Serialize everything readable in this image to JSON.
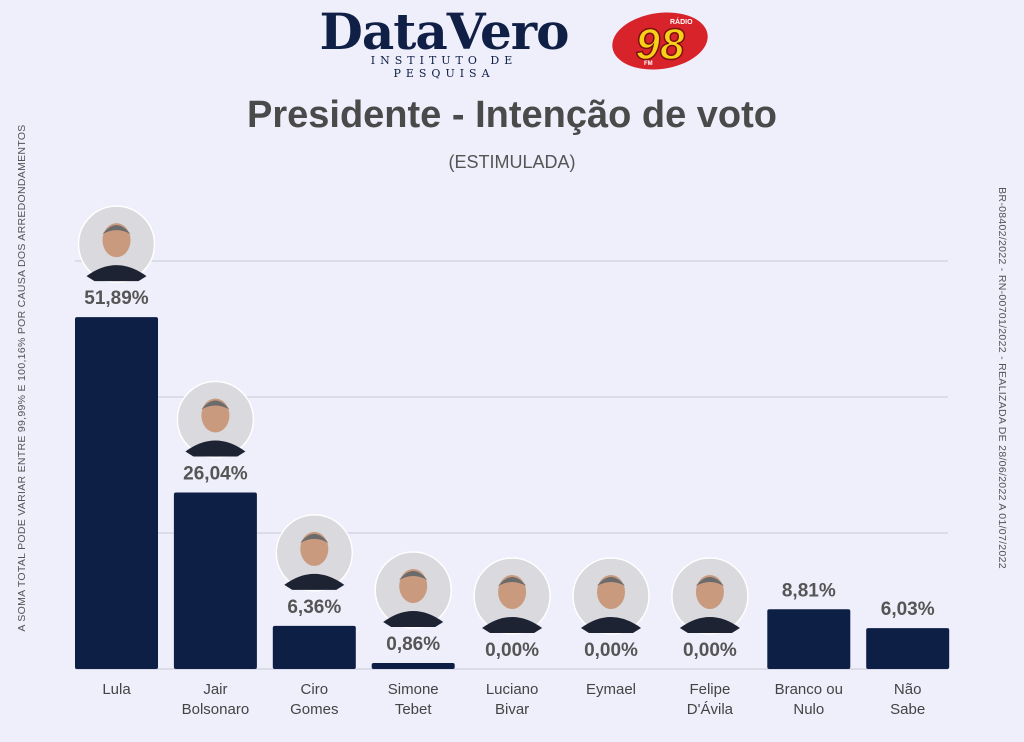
{
  "header": {
    "brand_name": "DataVero",
    "brand_tagline": "INSTITUTO DE PESQUISA",
    "radio_top": "RÁDIO",
    "radio_number": "98",
    "radio_bottom": "FM"
  },
  "side_notes": {
    "left": "A SOMA TOTAL PODE VARIAR ENTRE 99,99% E 100,16% POR CAUSA DOS ARREDONDAMENTOS",
    "right": "BR-08402/2022 - RN-00701/2022 - REALIZADA DE 28/06/2022 A 01/07/2022"
  },
  "colors": {
    "bar": "#0d1f45",
    "background": "#efeefb",
    "grid": "#c9c8d6",
    "radio_red": "#d8232a",
    "radio_yellow": "#f7d117"
  },
  "chart_data": {
    "type": "bar",
    "title": "Presidente - Intenção de voto",
    "subtitle": "(ESTIMULADA)",
    "categories": [
      "Lula",
      "Jair Bolsonaro",
      "Ciro Gomes",
      "Simone Tebet",
      "Luciano Bivar",
      "Eymael",
      "Felipe D'Ávila",
      "Branco ou Nulo",
      "Não Sabe"
    ],
    "category_lines": [
      [
        "Lula"
      ],
      [
        "Jair",
        "Bolsonaro"
      ],
      [
        "Ciro",
        "Gomes"
      ],
      [
        "Simone",
        "Tebet"
      ],
      [
        "Luciano",
        "Bivar"
      ],
      [
        "Eymael"
      ],
      [
        "Felipe",
        "D'Ávila"
      ],
      [
        "Branco ou",
        "Nulo"
      ],
      [
        "Não",
        "Sabe"
      ]
    ],
    "values": [
      51.89,
      26.04,
      6.36,
      0.86,
      0.0,
      0.0,
      0.0,
      8.81,
      6.03
    ],
    "data_labels": [
      "51,89%",
      "26,04%",
      "6,36%",
      "0,86%",
      "0,00%",
      "0,00%",
      "0,00%",
      "8,81%",
      "6,03%"
    ],
    "has_photo": [
      true,
      true,
      true,
      true,
      true,
      true,
      true,
      false,
      false
    ],
    "ylim": [
      0,
      60
    ],
    "gridlines": [
      20,
      40
    ],
    "grid": true,
    "legend": "none"
  }
}
